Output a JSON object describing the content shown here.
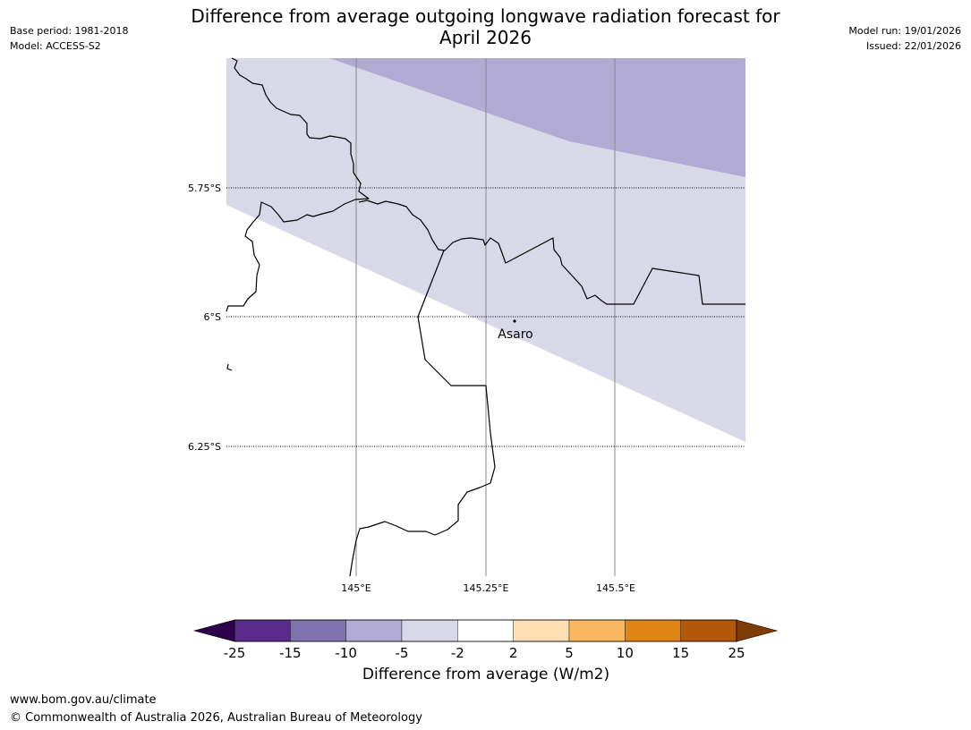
{
  "title_line1": "Difference from average outgoing longwave radiation forecast for",
  "title_line2": "April 2026",
  "meta_left": {
    "base_period": "Base period: 1981-2018",
    "model": "Model: ACCESS-S2"
  },
  "meta_right": {
    "model_run": "Model run: 19/01/2026",
    "issued": "Issued: 22/01/2026"
  },
  "map": {
    "lat_labels": [
      "5.75°S",
      "6°S",
      "6.25°S"
    ],
    "lon_labels": [
      "145°E",
      "145.25°E",
      "145.5°E"
    ],
    "place_label": "Asaro",
    "colors": {
      "light_lavender": "#d8d8e9",
      "medium_lavender": "#b1abd3",
      "border_line": "#000000",
      "graticule": "#888888"
    }
  },
  "colorbar": {
    "ticks": [
      "-25",
      "-15",
      "-10",
      "-5",
      "-2",
      "2",
      "5",
      "10",
      "15",
      "25"
    ],
    "colors": [
      "#5a2a8c",
      "#8073ae",
      "#b1abd3",
      "#d8d8e9",
      "#ffffff",
      "#fedeb3",
      "#fbb660",
      "#e08416",
      "#b35806"
    ],
    "under_color": "#2d004b",
    "over_color": "#7f3b08",
    "label": "Difference from average (W/m2)"
  },
  "footer": {
    "url": "www.bom.gov.au/climate",
    "copyright": "© Commonwealth of Australia 2026, Australian Bureau of Meteorology"
  }
}
